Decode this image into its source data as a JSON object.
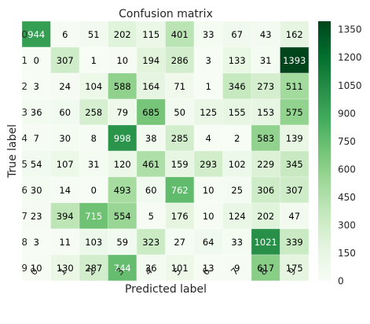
{
  "chart_data": {
    "type": "heatmap",
    "title": "Confusion matrix",
    "xlabel": "Predicted label",
    "ylabel": "True label",
    "x_categories": [
      "0",
      "1",
      "2",
      "3",
      "4",
      "5",
      "6",
      "7",
      "8",
      "9"
    ],
    "y_categories": [
      "0",
      "1",
      "2",
      "3",
      "4",
      "5",
      "6",
      "7",
      "8",
      "9"
    ],
    "values": [
      [
        944,
        6,
        51,
        202,
        115,
        401,
        33,
        67,
        43,
        162
      ],
      [
        0,
        307,
        1,
        10,
        194,
        286,
        3,
        133,
        31,
        1393
      ],
      [
        3,
        24,
        104,
        588,
        164,
        71,
        1,
        346,
        273,
        511
      ],
      [
        36,
        60,
        258,
        79,
        685,
        50,
        125,
        155,
        153,
        575
      ],
      [
        7,
        30,
        8,
        998,
        38,
        285,
        4,
        2,
        583,
        139
      ],
      [
        54,
        107,
        31,
        120,
        461,
        159,
        293,
        102,
        229,
        345
      ],
      [
        30,
        14,
        0,
        493,
        60,
        762,
        10,
        25,
        306,
        307
      ],
      [
        23,
        394,
        715,
        554,
        5,
        176,
        10,
        124,
        202,
        47
      ],
      [
        3,
        11,
        103,
        59,
        323,
        27,
        64,
        33,
        1021,
        339
      ],
      [
        10,
        130,
        287,
        744,
        36,
        101,
        13,
        9,
        617,
        175
      ]
    ],
    "colormap": "Greens",
    "value_range": [
      0,
      1393
    ],
    "colorbar_ticks": [
      0,
      150,
      300,
      450,
      600,
      750,
      900,
      1050,
      1200,
      1350
    ],
    "grid": true,
    "text_color_threshold": 696.5
  }
}
